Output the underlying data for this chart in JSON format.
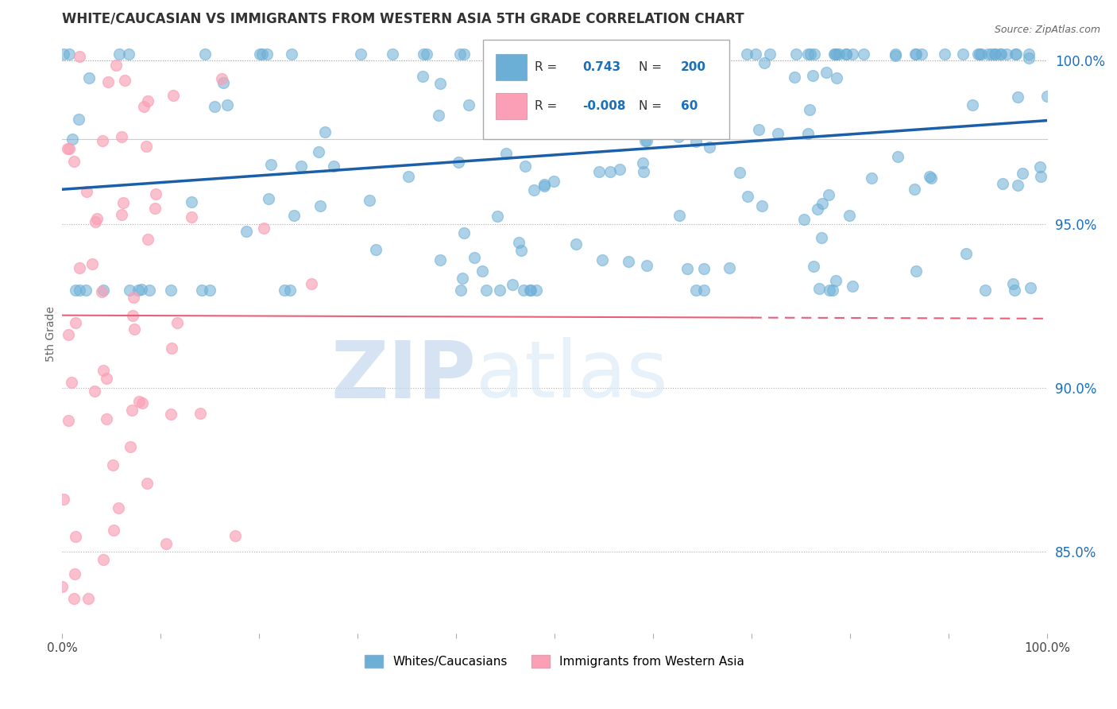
{
  "title": "WHITE/CAUCASIAN VS IMMIGRANTS FROM WESTERN ASIA 5TH GRADE CORRELATION CHART",
  "source": "Source: ZipAtlas.com",
  "ylabel": "5th Grade",
  "xlim": [
    0.0,
    1.0
  ],
  "ylim": [
    0.825,
    1.008
  ],
  "yticks": [
    0.85,
    0.9,
    0.95,
    1.0
  ],
  "ytick_labels": [
    "85.0%",
    "90.0%",
    "95.0%",
    "100.0%"
  ],
  "xticks": [
    0.0,
    0.1,
    0.2,
    0.3,
    0.4,
    0.5,
    0.6,
    0.7,
    0.8,
    0.9,
    1.0
  ],
  "xtick_labels": [
    "0.0%",
    "",
    "",
    "",
    "",
    "",
    "",
    "",
    "",
    "",
    "100.0%"
  ],
  "legend_r1_val": "0.743",
  "legend_n1_val": "200",
  "legend_r2_val": "-0.008",
  "legend_n2_val": "60",
  "blue_color": "#6baed6",
  "pink_color": "#fa9fb5",
  "blue_line_color": "#1a5fa8",
  "pink_line_color": "#e8607a",
  "text_color_blue": "#1a6fbd",
  "watermark_zip": "ZIP",
  "watermark_atlas": "atlas",
  "background_color": "#ffffff",
  "seed": 12,
  "n_blue": 200,
  "n_pink": 60
}
